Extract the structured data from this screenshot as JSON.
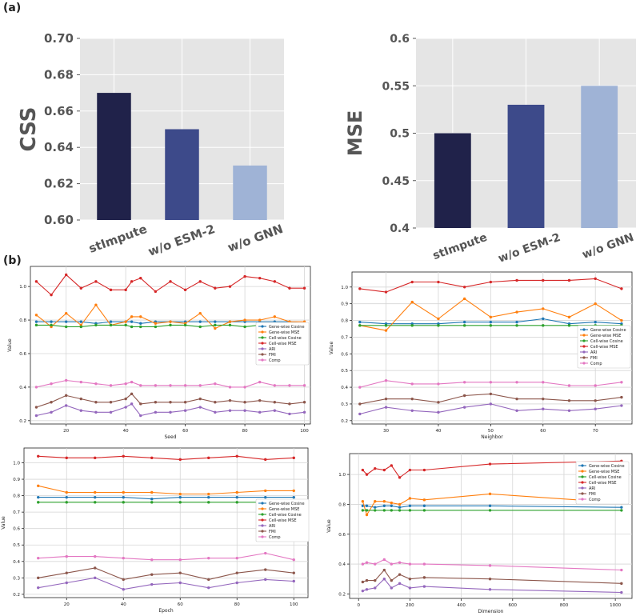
{
  "labels": {
    "a": "(a)",
    "b": "(b)"
  },
  "colors": {
    "bar_dark": "#20224a",
    "bar_mid": "#3d4a8a",
    "bar_light": "#9fb3d6",
    "plot_bg": "#e5e5e5",
    "gene_cos": "#1f77b4",
    "gene_mse": "#ff7f0e",
    "cell_cos": "#2ca02c",
    "cell_mse": "#d62728",
    "ari": "#9467bd",
    "fmi": "#8c564b",
    "comp": "#e377c2"
  },
  "chart_data": [
    {
      "id": "css_bar",
      "type": "bar",
      "categories": [
        "stImpute",
        "w/o ESM-2",
        "w/o GNN"
      ],
      "values": [
        0.67,
        0.65,
        0.63
      ],
      "ylabel": "CSS",
      "ylim": [
        0.6,
        0.7
      ],
      "yticks": [
        "0.60",
        "0.62",
        "0.64",
        "0.66",
        "0.68",
        "0.70"
      ],
      "ytick_values": [
        0.6,
        0.62,
        0.64,
        0.66,
        0.68,
        0.7
      ],
      "grid": true
    },
    {
      "id": "mse_bar",
      "type": "bar",
      "categories": [
        "stImpute",
        "w/o ESM-2",
        "w/o GNN"
      ],
      "values": [
        0.5,
        0.53,
        0.55
      ],
      "ylabel": "MSE",
      "ylim": [
        0.4,
        0.6
      ],
      "yticks": [
        "0.4",
        "0.45",
        "0.5",
        "0.55",
        "0.6"
      ],
      "ytick_values": [
        0.4,
        0.45,
        0.5,
        0.55,
        0.6
      ],
      "grid": true
    },
    {
      "id": "seed_line",
      "type": "line",
      "xlabel": "Seed",
      "ylabel": "Value",
      "xlim": [
        8,
        102
      ],
      "ylim": [
        0.18,
        1.12
      ],
      "xticks": [
        20,
        40,
        60,
        80,
        100
      ],
      "yticks": [
        0.2,
        0.4,
        0.6,
        0.8,
        1.0
      ],
      "ytick_labels": [
        "0.2",
        "0.4",
        "0.6",
        "0.8",
        "1.0"
      ],
      "legend": "center-right",
      "x": [
        10,
        15,
        20,
        25,
        30,
        35,
        40,
        42,
        45,
        50,
        55,
        60,
        65,
        70,
        75,
        80,
        85,
        90,
        95,
        100
      ],
      "series": [
        {
          "name": "Gene-wise Cosine",
          "color_key": "gene_cos",
          "values": [
            0.79,
            0.79,
            0.79,
            0.79,
            0.78,
            0.79,
            0.79,
            0.79,
            0.78,
            0.79,
            0.79,
            0.79,
            0.79,
            0.79,
            0.79,
            0.79,
            0.79,
            0.79,
            0.79,
            0.78
          ]
        },
        {
          "name": "Gene-wise MSE",
          "color_key": "gene_mse",
          "values": [
            0.83,
            0.76,
            0.84,
            0.77,
            0.89,
            0.77,
            0.79,
            0.82,
            0.82,
            0.78,
            0.79,
            0.78,
            0.84,
            0.75,
            0.79,
            0.8,
            0.8,
            0.82,
            0.79,
            0.79
          ]
        },
        {
          "name": "Cell-wise Cosine",
          "color_key": "cell_cos",
          "values": [
            0.77,
            0.77,
            0.76,
            0.76,
            0.77,
            0.77,
            0.77,
            0.76,
            0.76,
            0.76,
            0.77,
            0.77,
            0.76,
            0.77,
            0.77,
            0.76,
            0.77,
            0.77,
            0.77,
            0.77
          ]
        },
        {
          "name": "Cell-wise MSE",
          "color_key": "cell_mse",
          "values": [
            1.03,
            0.95,
            1.07,
            0.99,
            1.03,
            0.98,
            0.98,
            1.03,
            1.05,
            0.97,
            1.03,
            0.98,
            1.03,
            0.99,
            1.0,
            1.06,
            1.05,
            1.03,
            0.99,
            0.99
          ]
        },
        {
          "name": "ARI",
          "color_key": "ari",
          "values": [
            0.23,
            0.25,
            0.29,
            0.26,
            0.25,
            0.25,
            0.28,
            0.3,
            0.23,
            0.25,
            0.25,
            0.26,
            0.28,
            0.25,
            0.26,
            0.26,
            0.25,
            0.26,
            0.24,
            0.25
          ]
        },
        {
          "name": "FMI",
          "color_key": "fmi",
          "values": [
            0.28,
            0.31,
            0.35,
            0.33,
            0.31,
            0.31,
            0.33,
            0.36,
            0.3,
            0.31,
            0.31,
            0.31,
            0.33,
            0.31,
            0.32,
            0.31,
            0.32,
            0.31,
            0.3,
            0.31
          ]
        },
        {
          "name": "Comp",
          "color_key": "comp",
          "values": [
            0.4,
            0.42,
            0.44,
            0.43,
            0.42,
            0.41,
            0.42,
            0.43,
            0.41,
            0.41,
            0.41,
            0.41,
            0.41,
            0.42,
            0.4,
            0.4,
            0.43,
            0.41,
            0.41,
            0.41
          ]
        }
      ]
    },
    {
      "id": "neighbor_line",
      "type": "line",
      "xlabel": "Neighbor",
      "ylabel": "Value",
      "xlim": [
        23.5,
        77
      ],
      "ylim": [
        0.18,
        1.09
      ],
      "xticks": [
        30,
        40,
        50,
        60,
        70
      ],
      "yticks": [
        0.2,
        0.3,
        0.4,
        0.5,
        0.6,
        0.7,
        0.8,
        0.9,
        1.0
      ],
      "ytick_labels": [
        "0.2",
        "0.3",
        "0.4",
        "0.5",
        "0.6",
        "0.7",
        "0.8",
        "0.9",
        "1.0"
      ],
      "legend": "center-right",
      "x": [
        25,
        30,
        35,
        40,
        45,
        50,
        55,
        60,
        65,
        70,
        75
      ],
      "series": [
        {
          "name": "Gene-wise Cosine",
          "color_key": "gene_cos",
          "values": [
            0.79,
            0.78,
            0.78,
            0.78,
            0.79,
            0.79,
            0.79,
            0.81,
            0.78,
            0.79,
            0.78
          ]
        },
        {
          "name": "Gene-wise MSE",
          "color_key": "gene_mse",
          "values": [
            0.77,
            0.74,
            0.91,
            0.81,
            0.93,
            0.82,
            0.85,
            0.87,
            0.82,
            0.9,
            0.8
          ]
        },
        {
          "name": "Cell-wise Cosine",
          "color_key": "cell_cos",
          "values": [
            0.77,
            0.77,
            0.77,
            0.77,
            0.77,
            0.77,
            0.77,
            0.77,
            0.77,
            0.77,
            0.77
          ]
        },
        {
          "name": "Cell-wise MSE",
          "color_key": "cell_mse",
          "values": [
            0.99,
            0.97,
            1.03,
            1.03,
            1.0,
            1.03,
            1.04,
            1.04,
            1.04,
            1.05,
            0.99
          ]
        },
        {
          "name": "ARI",
          "color_key": "ari",
          "values": [
            0.24,
            0.28,
            0.26,
            0.25,
            0.28,
            0.3,
            0.26,
            0.27,
            0.26,
            0.27,
            0.29
          ]
        },
        {
          "name": "FMI",
          "color_key": "fmi",
          "values": [
            0.3,
            0.33,
            0.33,
            0.31,
            0.35,
            0.36,
            0.33,
            0.33,
            0.32,
            0.32,
            0.34
          ]
        },
        {
          "name": "Comp",
          "color_key": "comp",
          "values": [
            0.4,
            0.44,
            0.42,
            0.42,
            0.43,
            0.43,
            0.43,
            0.43,
            0.41,
            0.41,
            0.43
          ]
        }
      ]
    },
    {
      "id": "epoch_line",
      "type": "line",
      "xlabel": "Epoch",
      "ylabel": "Value",
      "xlim": [
        5,
        105
      ],
      "ylim": [
        0.18,
        1.09
      ],
      "xticks": [
        20,
        40,
        60,
        80,
        100
      ],
      "yticks": [
        0.2,
        0.3,
        0.4,
        0.5,
        0.6,
        0.7,
        0.8,
        0.9,
        1.0
      ],
      "ytick_labels": [
        "0.2",
        "0.3",
        "0.4",
        "0.5",
        "0.6",
        "0.7",
        "0.8",
        "0.9",
        "1.0"
      ],
      "legend": "center-right",
      "x": [
        10,
        20,
        30,
        40,
        50,
        60,
        70,
        80,
        90,
        100
      ],
      "series": [
        {
          "name": "Gene-wise Cosine",
          "color_key": "gene_cos",
          "values": [
            0.79,
            0.79,
            0.79,
            0.79,
            0.78,
            0.79,
            0.79,
            0.79,
            0.79,
            0.79
          ]
        },
        {
          "name": "Gene-wise MSE",
          "color_key": "gene_mse",
          "values": [
            0.86,
            0.82,
            0.82,
            0.82,
            0.82,
            0.81,
            0.81,
            0.82,
            0.83,
            0.83
          ]
        },
        {
          "name": "Cell-wise Cosine",
          "color_key": "cell_cos",
          "values": [
            0.76,
            0.76,
            0.76,
            0.76,
            0.76,
            0.76,
            0.76,
            0.76,
            0.76,
            0.76
          ]
        },
        {
          "name": "Cell-wise MSE",
          "color_key": "cell_mse",
          "values": [
            1.04,
            1.03,
            1.03,
            1.04,
            1.03,
            1.02,
            1.03,
            1.04,
            1.02,
            1.03
          ]
        },
        {
          "name": "ARI",
          "color_key": "ari",
          "values": [
            0.24,
            0.27,
            0.3,
            0.23,
            0.26,
            0.27,
            0.24,
            0.27,
            0.29,
            0.28
          ]
        },
        {
          "name": "FMI",
          "color_key": "fmi",
          "values": [
            0.3,
            0.33,
            0.36,
            0.29,
            0.32,
            0.33,
            0.29,
            0.33,
            0.35,
            0.33
          ]
        },
        {
          "name": "Comp",
          "color_key": "comp",
          "values": [
            0.42,
            0.43,
            0.43,
            0.42,
            0.41,
            0.41,
            0.42,
            0.42,
            0.45,
            0.41
          ]
        }
      ]
    },
    {
      "id": "dimension_line",
      "type": "line",
      "xlabel": "Dimension",
      "ylabel": "Value",
      "xlim": [
        -35,
        1065
      ],
      "ylim": [
        0.17,
        1.14
      ],
      "xticks": [
        0,
        200,
        400,
        600,
        800,
        1000
      ],
      "yticks": [
        0.2,
        0.4,
        0.6,
        0.8,
        1.0
      ],
      "ytick_labels": [
        "0.2",
        "0.4",
        "0.6",
        "0.8",
        "1.0"
      ],
      "legend": "top-right",
      "x": [
        16,
        32,
        64,
        100,
        128,
        160,
        200,
        256,
        512,
        1024
      ],
      "series": [
        {
          "name": "Gene-wise Cosine",
          "color_key": "gene_cos",
          "values": [
            0.79,
            0.79,
            0.78,
            0.79,
            0.79,
            0.78,
            0.79,
            0.79,
            0.79,
            0.78
          ]
        },
        {
          "name": "Gene-wise MSE",
          "color_key": "gene_mse",
          "values": [
            0.82,
            0.73,
            0.82,
            0.82,
            0.81,
            0.8,
            0.84,
            0.83,
            0.87,
            0.81
          ]
        },
        {
          "name": "Cell-wise Cosine",
          "color_key": "cell_cos",
          "values": [
            0.76,
            0.76,
            0.76,
            0.76,
            0.76,
            0.76,
            0.76,
            0.76,
            0.76,
            0.76
          ]
        },
        {
          "name": "Cell-wise MSE",
          "color_key": "cell_mse",
          "values": [
            1.03,
            1.0,
            1.04,
            1.03,
            1.06,
            0.98,
            1.03,
            1.03,
            1.07,
            1.09
          ]
        },
        {
          "name": "ARI",
          "color_key": "ari",
          "values": [
            0.22,
            0.23,
            0.24,
            0.3,
            0.24,
            0.27,
            0.24,
            0.25,
            0.23,
            0.21
          ]
        },
        {
          "name": "FMI",
          "color_key": "fmi",
          "values": [
            0.28,
            0.29,
            0.29,
            0.36,
            0.29,
            0.33,
            0.3,
            0.31,
            0.3,
            0.27
          ]
        },
        {
          "name": "Comp",
          "color_key": "comp",
          "values": [
            0.4,
            0.41,
            0.4,
            0.43,
            0.4,
            0.41,
            0.4,
            0.4,
            0.39,
            0.36
          ]
        }
      ]
    }
  ]
}
